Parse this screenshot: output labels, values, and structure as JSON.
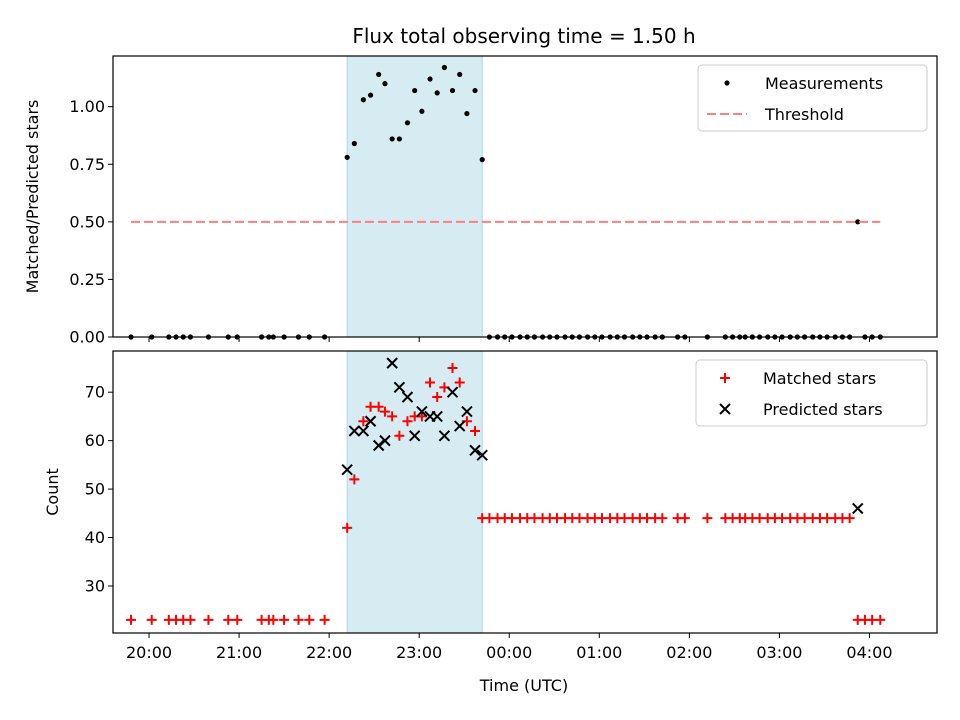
{
  "figure": {
    "title": "Flux total observing time = 1.50 h",
    "xlabel": "Time (UTC)",
    "x_ticks": [
      "20:00",
      "21:00",
      "22:00",
      "23:00",
      "00:00",
      "01:00",
      "02:00",
      "03:00",
      "04:00"
    ],
    "xlim_hours": [
      19.6,
      28.75
    ],
    "highlight_span_hours": [
      22.2,
      23.7
    ],
    "highlight_color": "#add8e6",
    "colors": {
      "measurement": "#000000",
      "threshold": "#ff7f7f",
      "matched": "#ff0000",
      "predicted": "#000000"
    }
  },
  "chart_data": [
    {
      "type": "scatter",
      "ylabel": "Matched/Predicted stars",
      "ylim": [
        0,
        1.22
      ],
      "y_ticks": [
        "0.00",
        "0.25",
        "0.50",
        "0.75",
        "1.00"
      ],
      "legend_position": "upper-right",
      "series": [
        {
          "name": "Measurements",
          "marker": "dot",
          "x": [
            19.8,
            20.03,
            20.22,
            20.3,
            20.38,
            20.46,
            20.66,
            20.88,
            20.98,
            21.25,
            21.33,
            21.38,
            21.5,
            21.66,
            21.78,
            21.95,
            22.2,
            22.28,
            22.38,
            22.46,
            22.55,
            22.62,
            22.7,
            22.78,
            22.87,
            22.95,
            23.03,
            23.12,
            23.2,
            23.28,
            23.37,
            23.45,
            23.53,
            23.62,
            23.7,
            23.78,
            23.87,
            23.95,
            24.03,
            24.12,
            24.2,
            24.28,
            24.37,
            24.45,
            24.53,
            24.62,
            24.7,
            24.78,
            24.87,
            24.95,
            25.03,
            25.12,
            25.2,
            25.28,
            25.37,
            25.45,
            25.53,
            25.62,
            25.7,
            25.87,
            25.95,
            26.2,
            26.4,
            26.48,
            26.56,
            26.62,
            26.7,
            26.78,
            26.87,
            26.95,
            27.03,
            27.12,
            27.2,
            27.28,
            27.37,
            27.45,
            27.53,
            27.62,
            27.7,
            27.78,
            27.87,
            27.95,
            28.03,
            28.12
          ],
          "y": [
            0,
            0,
            0,
            0,
            0,
            0,
            0,
            0,
            0,
            0,
            0,
            0,
            0,
            0,
            0,
            0,
            0.78,
            0.84,
            1.03,
            1.05,
            1.14,
            1.1,
            0.86,
            0.86,
            0.93,
            1.07,
            0.98,
            1.12,
            1.06,
            1.17,
            1.07,
            1.14,
            0.97,
            1.07,
            0.77,
            0,
            0,
            0,
            0,
            0,
            0,
            0,
            0,
            0,
            0,
            0,
            0,
            0,
            0,
            0,
            0,
            0,
            0,
            0,
            0,
            0,
            0,
            0,
            0,
            0,
            0,
            0,
            0,
            0,
            0,
            0,
            0,
            0,
            0,
            0,
            0,
            0,
            0,
            0,
            0,
            0,
            0,
            0,
            0,
            0,
            0.5,
            0,
            0,
            0
          ]
        },
        {
          "name": "Threshold",
          "marker": "dashed-line",
          "x": [
            19.8,
            28.12
          ],
          "y": [
            0.5,
            0.5
          ]
        }
      ]
    },
    {
      "type": "scatter",
      "ylabel": "Count",
      "ylim": [
        20.3,
        78.5
      ],
      "y_ticks": [
        "30",
        "40",
        "50",
        "60",
        "70"
      ],
      "legend_position": "upper-right",
      "series": [
        {
          "name": "Matched stars",
          "marker": "plus",
          "x": [
            19.8,
            20.03,
            20.22,
            20.3,
            20.38,
            20.46,
            20.66,
            20.88,
            20.98,
            21.25,
            21.33,
            21.38,
            21.5,
            21.66,
            21.78,
            21.95,
            22.2,
            22.28,
            22.38,
            22.46,
            22.55,
            22.62,
            22.7,
            22.78,
            22.87,
            22.95,
            23.03,
            23.12,
            23.2,
            23.28,
            23.37,
            23.45,
            23.53,
            23.62,
            23.7,
            23.78,
            23.87,
            23.95,
            24.03,
            24.12,
            24.2,
            24.28,
            24.37,
            24.45,
            24.53,
            24.62,
            24.7,
            24.78,
            24.87,
            24.95,
            25.03,
            25.12,
            25.2,
            25.28,
            25.37,
            25.45,
            25.53,
            25.62,
            25.7,
            25.87,
            25.95,
            26.2,
            26.4,
            26.48,
            26.56,
            26.62,
            26.7,
            26.78,
            26.87,
            26.95,
            27.03,
            27.12,
            27.2,
            27.28,
            27.37,
            27.45,
            27.53,
            27.62,
            27.7,
            27.78,
            27.87,
            27.95,
            28.03,
            28.12
          ],
          "y": [
            23,
            23,
            23,
            23,
            23,
            23,
            23,
            23,
            23,
            23,
            23,
            23,
            23,
            23,
            23,
            23,
            42,
            52,
            64,
            67,
            67,
            66,
            65,
            61,
            64,
            65,
            65,
            72,
            69,
            71,
            75,
            72,
            64,
            62,
            44,
            44,
            44,
            44,
            44,
            44,
            44,
            44,
            44,
            44,
            44,
            44,
            44,
            44,
            44,
            44,
            44,
            44,
            44,
            44,
            44,
            44,
            44,
            44,
            44,
            44,
            44,
            44,
            44,
            44,
            44,
            44,
            44,
            44,
            44,
            44,
            44,
            44,
            44,
            44,
            44,
            44,
            44,
            44,
            44,
            44,
            23,
            23,
            23,
            23
          ]
        },
        {
          "name": "Predicted stars",
          "marker": "x",
          "x": [
            22.2,
            22.28,
            22.38,
            22.46,
            22.55,
            22.62,
            22.7,
            22.78,
            22.87,
            22.95,
            23.03,
            23.12,
            23.2,
            23.28,
            23.37,
            23.45,
            23.53,
            23.62,
            23.7,
            27.87
          ],
          "y": [
            54,
            62,
            62,
            64,
            59,
            60,
            76,
            71,
            69,
            61,
            66,
            65,
            65,
            61,
            70,
            63,
            66,
            58,
            57,
            46
          ]
        }
      ]
    }
  ]
}
